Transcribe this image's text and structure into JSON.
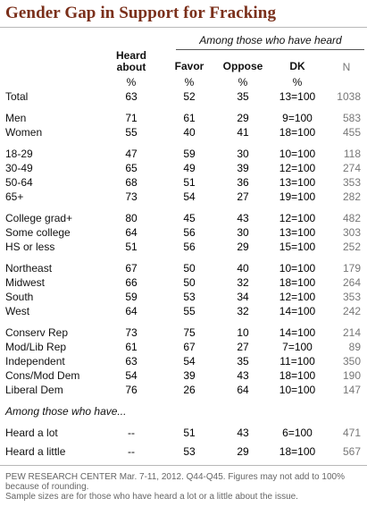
{
  "title": "Gender Gap in Support for Fracking",
  "subhead": "Among those who have heard",
  "columns": {
    "heard": "Heard about",
    "favor": "Favor",
    "oppose": "Oppose",
    "dk": "DK",
    "n": "N",
    "pct": "%"
  },
  "rows": [
    {
      "label": "Total",
      "heard": "63",
      "favor": "52",
      "oppose": "35",
      "dk": "13=100",
      "n": "1038"
    },
    {
      "label": "Men",
      "heard": "71",
      "favor": "61",
      "oppose": "29",
      "dk": "9=100",
      "n": "583"
    },
    {
      "label": "Women",
      "heard": "55",
      "favor": "40",
      "oppose": "41",
      "dk": "18=100",
      "n": "455"
    },
    {
      "label": "18-29",
      "heard": "47",
      "favor": "59",
      "oppose": "30",
      "dk": "10=100",
      "n": "118"
    },
    {
      "label": "30-49",
      "heard": "65",
      "favor": "49",
      "oppose": "39",
      "dk": "12=100",
      "n": "274"
    },
    {
      "label": "50-64",
      "heard": "68",
      "favor": "51",
      "oppose": "36",
      "dk": "13=100",
      "n": "353"
    },
    {
      "label": "65+",
      "heard": "73",
      "favor": "54",
      "oppose": "27",
      "dk": "19=100",
      "n": "282"
    },
    {
      "label": "College grad+",
      "heard": "80",
      "favor": "45",
      "oppose": "43",
      "dk": "12=100",
      "n": "482"
    },
    {
      "label": "Some college",
      "heard": "64",
      "favor": "56",
      "oppose": "30",
      "dk": "13=100",
      "n": "303"
    },
    {
      "label": "HS or less",
      "heard": "51",
      "favor": "56",
      "oppose": "29",
      "dk": "15=100",
      "n": "252"
    },
    {
      "label": "Northeast",
      "heard": "67",
      "favor": "50",
      "oppose": "40",
      "dk": "10=100",
      "n": "179"
    },
    {
      "label": "Midwest",
      "heard": "66",
      "favor": "50",
      "oppose": "32",
      "dk": "18=100",
      "n": "264"
    },
    {
      "label": "South",
      "heard": "59",
      "favor": "53",
      "oppose": "34",
      "dk": "12=100",
      "n": "353"
    },
    {
      "label": "West",
      "heard": "64",
      "favor": "55",
      "oppose": "32",
      "dk": "14=100",
      "n": "242"
    },
    {
      "label": "Conserv Rep",
      "heard": "73",
      "favor": "75",
      "oppose": "10",
      "dk": "14=100",
      "n": "214"
    },
    {
      "label": "Mod/Lib Rep",
      "heard": "61",
      "favor": "67",
      "oppose": "27",
      "dk": "7=100",
      "n": "89"
    },
    {
      "label": "Independent",
      "heard": "63",
      "favor": "54",
      "oppose": "35",
      "dk": "11=100",
      "n": "350"
    },
    {
      "label": "Cons/Mod Dem",
      "heard": "54",
      "favor": "39",
      "oppose": "43",
      "dk": "18=100",
      "n": "190"
    },
    {
      "label": "Liberal Dem",
      "heard": "76",
      "favor": "26",
      "oppose": "64",
      "dk": "10=100",
      "n": "147"
    },
    {
      "label": "Heard a lot",
      "heard": "--",
      "favor": "51",
      "oppose": "43",
      "dk": "6=100",
      "n": "471"
    },
    {
      "label": "Heard a little",
      "heard": "--",
      "favor": "53",
      "oppose": "29",
      "dk": "18=100",
      "n": "567"
    }
  ],
  "section_label": "Among those who have...",
  "footer": {
    "line1": "PEW RESEARCH CENTER Mar. 7-11, 2012. Q44-Q45. Figures may not add to 100%",
    "line2": "because of rounding.",
    "line3": "Sample sizes are for those who have heard a lot or a little about the issue."
  },
  "colors": {
    "title": "#7a2f1a",
    "rule": "#b8b8b8",
    "n_column": "#777777"
  }
}
